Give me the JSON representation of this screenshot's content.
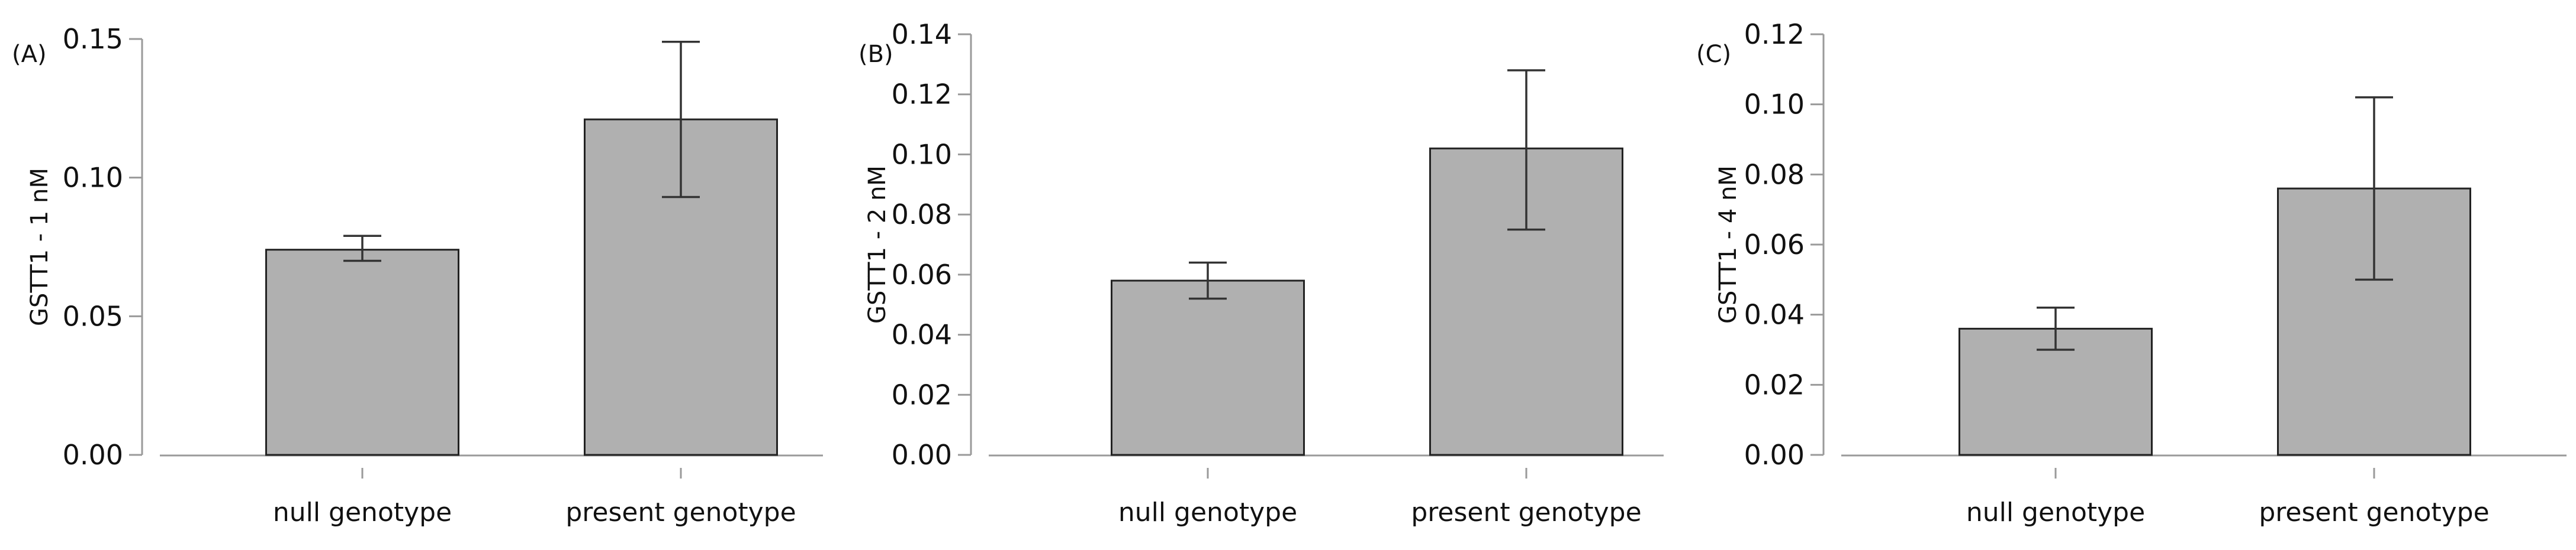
{
  "chart_data": [
    {
      "type": "bar",
      "panel_label": "(A)",
      "ylabel": "GSTT1 - 1 nM",
      "xlabel": "",
      "categories": [
        "null genotype",
        "present genotype"
      ],
      "values": [
        0.074,
        0.121
      ],
      "error_low": [
        0.07,
        0.093
      ],
      "error_high": [
        0.079,
        0.149
      ],
      "ylim": [
        0,
        0.15
      ],
      "yticks": [
        "0.00",
        "0.05",
        "0.10",
        "0.15"
      ],
      "bar_color": "#b0b0b0",
      "grid": false
    },
    {
      "type": "bar",
      "panel_label": "(B)",
      "ylabel": "GSTT1 - 2 nM",
      "xlabel": "",
      "categories": [
        "null genotype",
        "present genotype"
      ],
      "values": [
        0.058,
        0.102
      ],
      "error_low": [
        0.052,
        0.075
      ],
      "error_high": [
        0.064,
        0.128
      ],
      "ylim": [
        0,
        0.14
      ],
      "yticks": [
        "0.00",
        "0.02",
        "0.04",
        "0.06",
        "0.08",
        "0.10",
        "0.12",
        "0.14"
      ],
      "bar_color": "#b0b0b0",
      "grid": false
    },
    {
      "type": "bar",
      "panel_label": "(C)",
      "ylabel": "GSTT1 - 4 nM",
      "xlabel": "",
      "categories": [
        "null genotype",
        "present genotype"
      ],
      "values": [
        0.036,
        0.076
      ],
      "error_low": [
        0.03,
        0.05
      ],
      "error_high": [
        0.042,
        0.102
      ],
      "ylim": [
        0,
        0.12
      ],
      "yticks": [
        "0.00",
        "0.02",
        "0.04",
        "0.06",
        "0.08",
        "0.10",
        "0.12"
      ],
      "bar_color": "#b0b0b0",
      "grid": false
    }
  ]
}
